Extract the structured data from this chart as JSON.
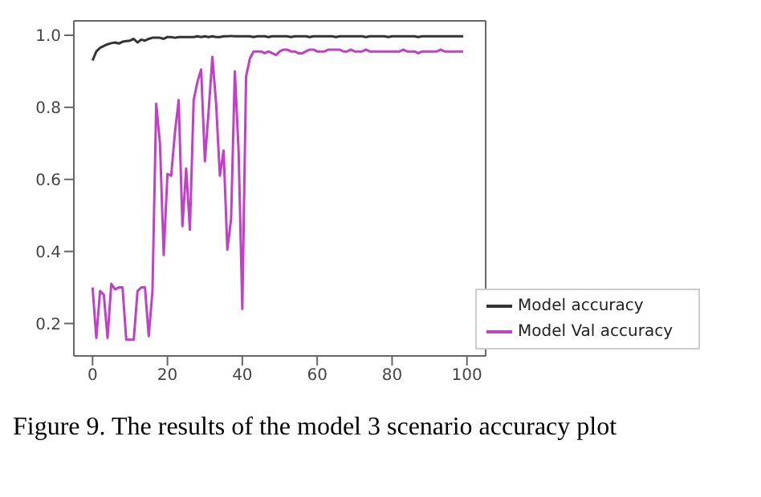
{
  "chart_data": {
    "type": "line",
    "annotations": [
      "Figure 9. The results of the model 3 scenario accuracy plot"
    ],
    "x": [
      0,
      1,
      2,
      3,
      4,
      5,
      6,
      7,
      8,
      9,
      10,
      11,
      12,
      13,
      14,
      15,
      16,
      17,
      18,
      19,
      20,
      21,
      22,
      23,
      24,
      25,
      26,
      27,
      28,
      29,
      30,
      31,
      32,
      33,
      34,
      35,
      36,
      37,
      38,
      39,
      40,
      41,
      42,
      43,
      44,
      45,
      46,
      47,
      48,
      49,
      50,
      51,
      52,
      53,
      54,
      55,
      56,
      57,
      58,
      59,
      60,
      61,
      62,
      63,
      64,
      65,
      66,
      67,
      68,
      69,
      70,
      71,
      72,
      73,
      74,
      75,
      76,
      77,
      78,
      79,
      80,
      81,
      82,
      83,
      84,
      85,
      86,
      87,
      88,
      89,
      90,
      91,
      92,
      93,
      94,
      95,
      96,
      97,
      98,
      99
    ],
    "series": [
      {
        "name": "Model accuracy",
        "color": "#333333",
        "values": [
          0.93,
          0.955,
          0.965,
          0.97,
          0.975,
          0.978,
          0.98,
          0.977,
          0.982,
          0.984,
          0.985,
          0.99,
          0.98,
          0.988,
          0.985,
          0.99,
          0.993,
          0.993,
          0.993,
          0.99,
          0.995,
          0.995,
          0.993,
          0.995,
          0.995,
          0.995,
          0.995,
          0.995,
          0.997,
          0.995,
          0.997,
          0.995,
          0.997,
          0.995,
          0.995,
          0.997,
          0.997,
          0.998,
          0.997,
          0.997,
          0.997,
          0.997,
          0.997,
          0.995,
          0.997,
          0.997,
          0.997,
          0.995,
          0.997,
          0.997,
          0.997,
          0.997,
          0.997,
          0.995,
          0.997,
          0.997,
          0.997,
          0.997,
          0.995,
          0.997,
          0.997,
          0.997,
          0.997,
          0.997,
          0.997,
          0.995,
          0.997,
          0.997,
          0.997,
          0.997,
          0.997,
          0.997,
          0.997,
          0.995,
          0.997,
          0.997,
          0.997,
          0.997,
          0.997,
          0.995,
          0.997,
          0.997,
          0.997,
          0.997,
          0.997,
          0.997,
          0.997,
          0.995,
          0.997,
          0.997,
          0.997,
          0.997,
          0.997,
          0.997,
          0.997,
          0.997,
          0.997,
          0.997,
          0.997,
          0.997
        ]
      },
      {
        "name": "Model Val accuracy",
        "color": "#c040c8",
        "values": [
          0.3,
          0.16,
          0.29,
          0.28,
          0.16,
          0.31,
          0.295,
          0.3,
          0.3,
          0.155,
          0.155,
          0.155,
          0.29,
          0.3,
          0.3,
          0.165,
          0.29,
          0.81,
          0.7,
          0.39,
          0.615,
          0.61,
          0.73,
          0.82,
          0.47,
          0.63,
          0.46,
          0.82,
          0.87,
          0.905,
          0.65,
          0.79,
          0.94,
          0.81,
          0.61,
          0.68,
          0.405,
          0.49,
          0.9,
          0.68,
          0.24,
          0.885,
          0.935,
          0.955,
          0.955,
          0.955,
          0.95,
          0.955,
          0.95,
          0.945,
          0.955,
          0.96,
          0.96,
          0.955,
          0.955,
          0.95,
          0.95,
          0.955,
          0.96,
          0.96,
          0.955,
          0.955,
          0.955,
          0.96,
          0.96,
          0.96,
          0.96,
          0.955,
          0.955,
          0.96,
          0.955,
          0.955,
          0.955,
          0.96,
          0.955,
          0.955,
          0.955,
          0.955,
          0.955,
          0.955,
          0.955,
          0.955,
          0.955,
          0.96,
          0.955,
          0.955,
          0.955,
          0.95,
          0.955,
          0.955,
          0.955,
          0.955,
          0.955,
          0.96,
          0.955,
          0.955,
          0.955,
          0.955,
          0.955,
          0.955
        ]
      }
    ],
    "xlim": [
      -5,
      105
    ],
    "xticks": [
      0,
      20,
      40,
      60,
      80,
      100
    ],
    "ylim": [
      0.11,
      1.04
    ],
    "yticks": [
      0.2,
      0.4,
      0.6,
      0.8,
      {
        "value": 1,
        "label": "1.0"
      }
    ],
    "grid": false,
    "legend": "bottom right",
    "marker": "none",
    "line_style": "solid"
  }
}
